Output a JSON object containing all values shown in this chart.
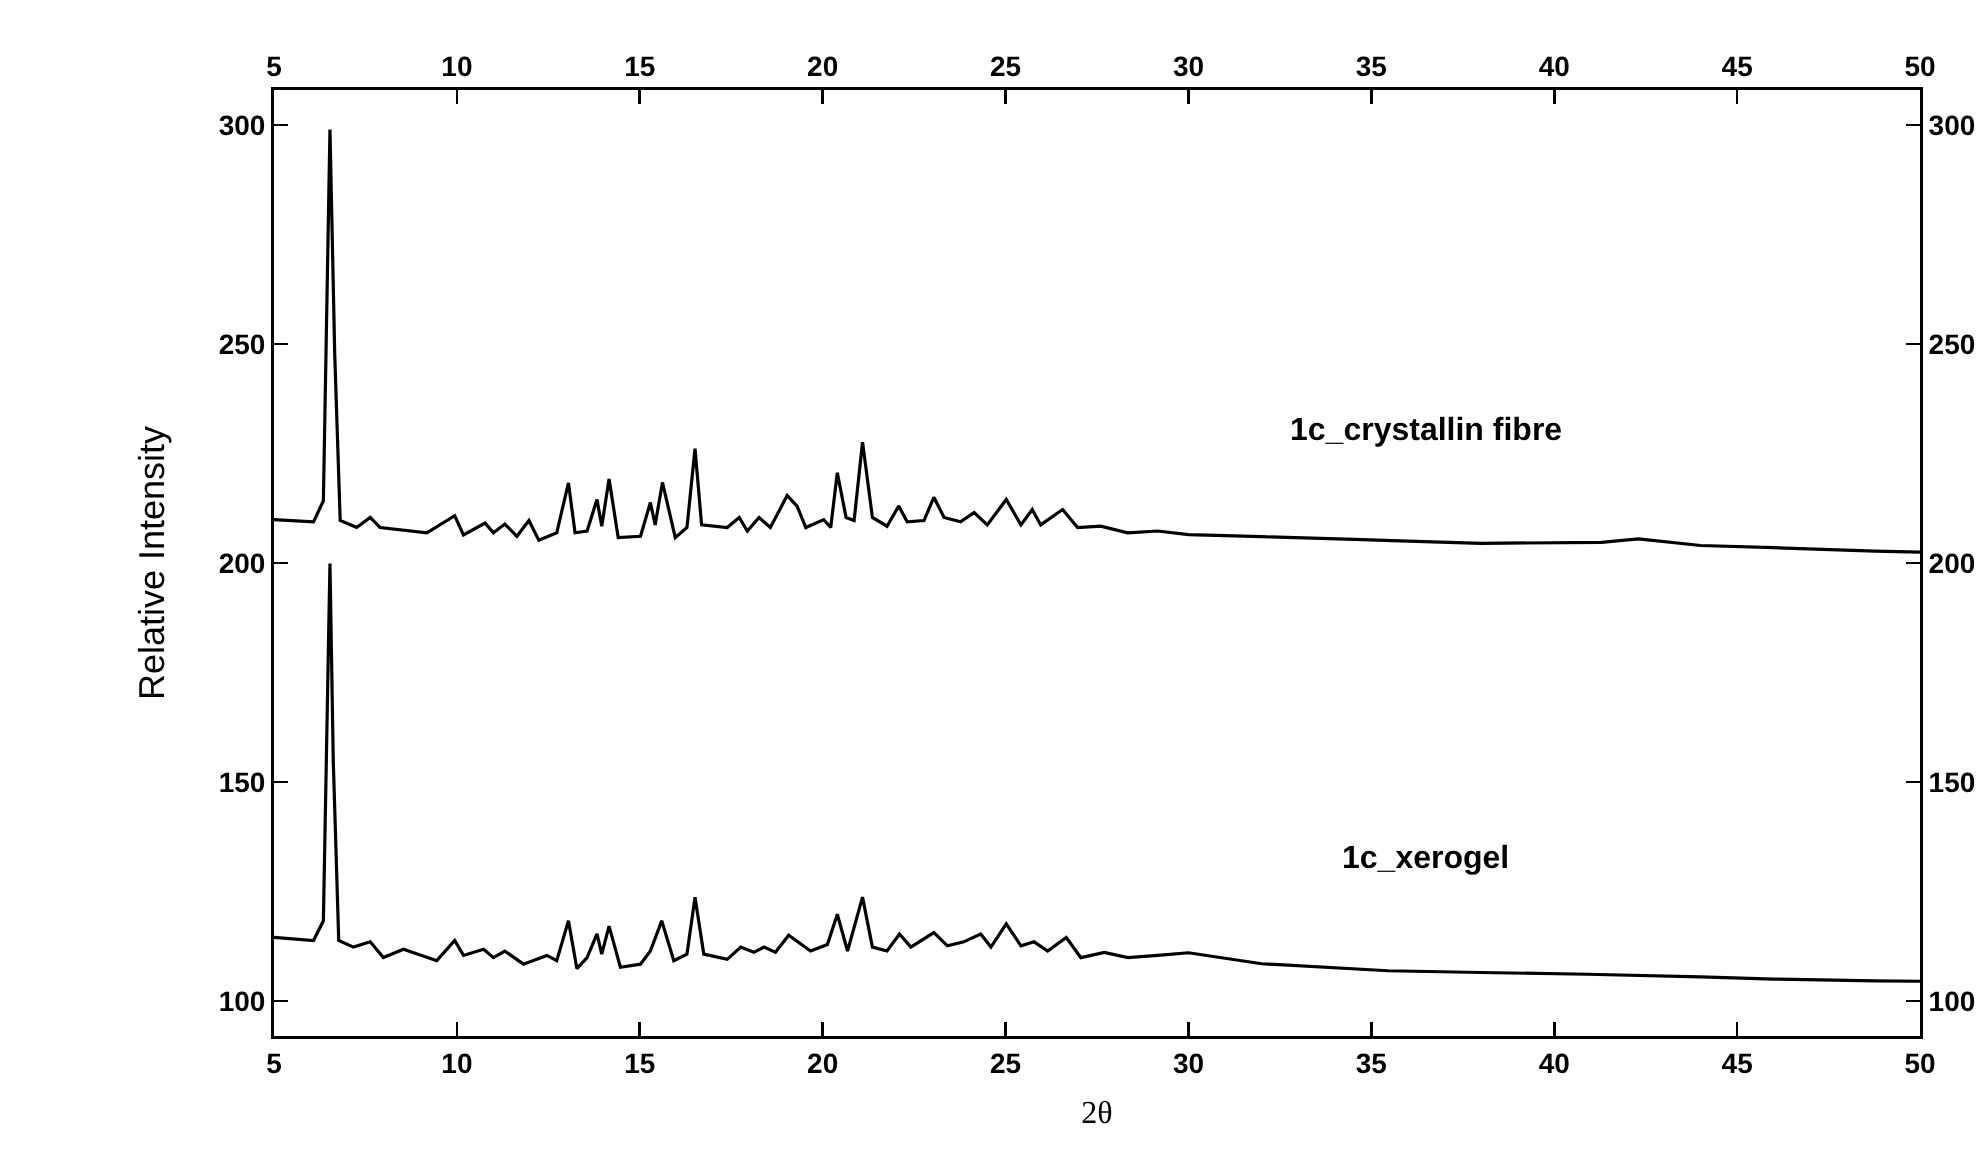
{
  "chart_data": {
    "type": "line",
    "xlabel": "2θ",
    "ylabel": "Relative Intensity",
    "xlim": [
      5,
      50
    ],
    "xticks": [
      5,
      10,
      15,
      20,
      25,
      30,
      35,
      40,
      45,
      50
    ],
    "x2lim": [
      5,
      50
    ],
    "x2ticks": [
      5,
      10,
      15,
      20,
      25,
      30,
      35,
      40,
      45,
      50
    ],
    "ylim": [
      92,
      308
    ],
    "yticks": [
      100,
      150,
      200,
      250,
      300
    ],
    "y2lim": [
      92,
      308
    ],
    "y2ticks": [
      100,
      150,
      200,
      250,
      300
    ],
    "legend": false,
    "grid": false,
    "marker": "none",
    "line_style": "solid",
    "series": [
      {
        "name": "1c_crystallin fibre",
        "color": "#000000",
        "x": [
          5.0,
          6.08,
          6.35,
          6.53,
          6.66,
          6.81,
          7.26,
          7.63,
          7.9,
          9.18,
          9.94,
          10.18,
          10.77,
          11.0,
          11.31,
          11.64,
          11.97,
          12.24,
          12.73,
          13.05,
          13.23,
          13.56,
          13.83,
          13.96,
          14.16,
          14.41,
          15.02,
          15.29,
          15.42,
          15.62,
          15.97,
          16.29,
          16.51,
          16.69,
          17.39,
          17.72,
          17.94,
          18.26,
          18.57,
          19.03,
          19.3,
          19.54,
          20.03,
          20.22,
          20.4,
          20.64,
          20.86,
          21.09,
          21.36,
          21.76,
          22.08,
          22.31,
          22.77,
          23.04,
          23.32,
          23.77,
          24.14,
          24.5,
          25.02,
          25.42,
          25.73,
          25.96,
          26.56,
          26.97,
          27.6,
          28.34,
          29.16,
          30.0,
          32.0,
          34.54,
          36.0,
          38.0,
          41.29,
          42.3,
          44.0,
          46.0,
          48.77,
          50.0
        ],
        "values": [
          209.9,
          209.4,
          214.2,
          299,
          247.7,
          209.7,
          208.1,
          210.4,
          208.1,
          206.9,
          210.8,
          206.4,
          209.1,
          206.9,
          208.9,
          206.1,
          209.7,
          205.2,
          206.9,
          218.3,
          206.9,
          207.3,
          214.5,
          208.4,
          219.2,
          205.8,
          206.1,
          213.8,
          208.7,
          218.4,
          205.8,
          208.1,
          226.1,
          208.7,
          208.1,
          210.4,
          207.3,
          210.4,
          208.1,
          215.4,
          213.0,
          208.1,
          209.9,
          208.1,
          220.6,
          210.4,
          209.7,
          227.6,
          210.4,
          208.4,
          213.0,
          209.4,
          209.7,
          215.0,
          210.4,
          209.4,
          211.5,
          208.7,
          214.5,
          208.7,
          212.2,
          208.7,
          212.2,
          208.1,
          208.4,
          206.9,
          207.3,
          206.5,
          206.0,
          205.4,
          205.0,
          204.5,
          204.7,
          205.5,
          204.0,
          203.5,
          202.7,
          202.5
        ]
      },
      {
        "name": "1c_xerogel",
        "color": "#000000",
        "x": [
          5.0,
          6.08,
          6.35,
          6.53,
          6.62,
          6.77,
          7.17,
          7.63,
          7.99,
          8.54,
          9.45,
          9.94,
          10.18,
          10.73,
          11.0,
          11.31,
          11.82,
          12.46,
          12.73,
          13.05,
          13.28,
          13.56,
          13.83,
          13.96,
          14.16,
          14.47,
          15.02,
          15.29,
          15.6,
          15.93,
          16.29,
          16.51,
          16.75,
          17.39,
          17.76,
          18.12,
          18.4,
          18.71,
          19.07,
          19.67,
          20.13,
          20.4,
          20.68,
          21.09,
          21.36,
          21.76,
          22.1,
          22.41,
          23.04,
          23.41,
          23.86,
          24.32,
          24.6,
          25.02,
          25.42,
          25.78,
          26.15,
          26.66,
          27.06,
          27.7,
          28.34,
          29.16,
          30.0,
          32.0,
          35.45,
          38.0,
          40.9,
          44.0,
          46.0,
          48.77,
          50.0
        ],
        "values": [
          114.5,
          113.8,
          118.3,
          199.9,
          154.9,
          113.8,
          112.3,
          113.5,
          109.9,
          111.8,
          109.2,
          113.8,
          110.4,
          111.8,
          109.9,
          111.4,
          108.4,
          110.4,
          109.2,
          118.3,
          107.4,
          109.9,
          115.3,
          110.7,
          117.1,
          107.7,
          108.4,
          111.4,
          118.3,
          109.2,
          110.7,
          123.7,
          110.7,
          109.5,
          112.3,
          111.1,
          112.3,
          111.1,
          115.0,
          111.4,
          112.9,
          119.8,
          111.4,
          123.7,
          112.3,
          111.4,
          115.3,
          112.3,
          115.6,
          112.6,
          113.5,
          115.3,
          112.3,
          117.6,
          112.6,
          113.5,
          111.4,
          114.5,
          109.9,
          111.1,
          109.9,
          110.4,
          111.0,
          108.5,
          106.9,
          106.5,
          106.1,
          105.5,
          105.0,
          104.6,
          104.5
        ]
      }
    ]
  }
}
